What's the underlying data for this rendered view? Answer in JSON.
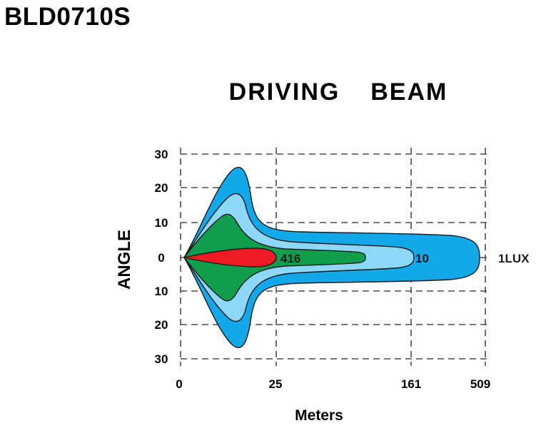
{
  "header": {
    "product_code": "BLD0710S"
  },
  "chart_data": {
    "type": "area",
    "title": "DRIVING  BEAM",
    "xlabel": "Meters",
    "ylabel": "ANGLE",
    "x_ticks": [
      "0",
      "25",
      "161",
      "509"
    ],
    "y_ticks": [
      "30",
      "20",
      "10",
      "0",
      "10",
      "20",
      "30"
    ],
    "grid": true,
    "contours": [
      {
        "lux_label": "1LUX",
        "reach": "509",
        "max_angle": 27,
        "color": "#12a8ea"
      },
      {
        "lux_label": "10",
        "reach": "161",
        "max_angle": 19,
        "color": "#8dd8f8"
      },
      {
        "lux_label": "416",
        "reach": "100",
        "max_angle": 12,
        "color": "#119e4c"
      },
      {
        "lux_label": "",
        "reach": "25",
        "max_angle": 3,
        "color": "#ed1c24"
      }
    ]
  }
}
